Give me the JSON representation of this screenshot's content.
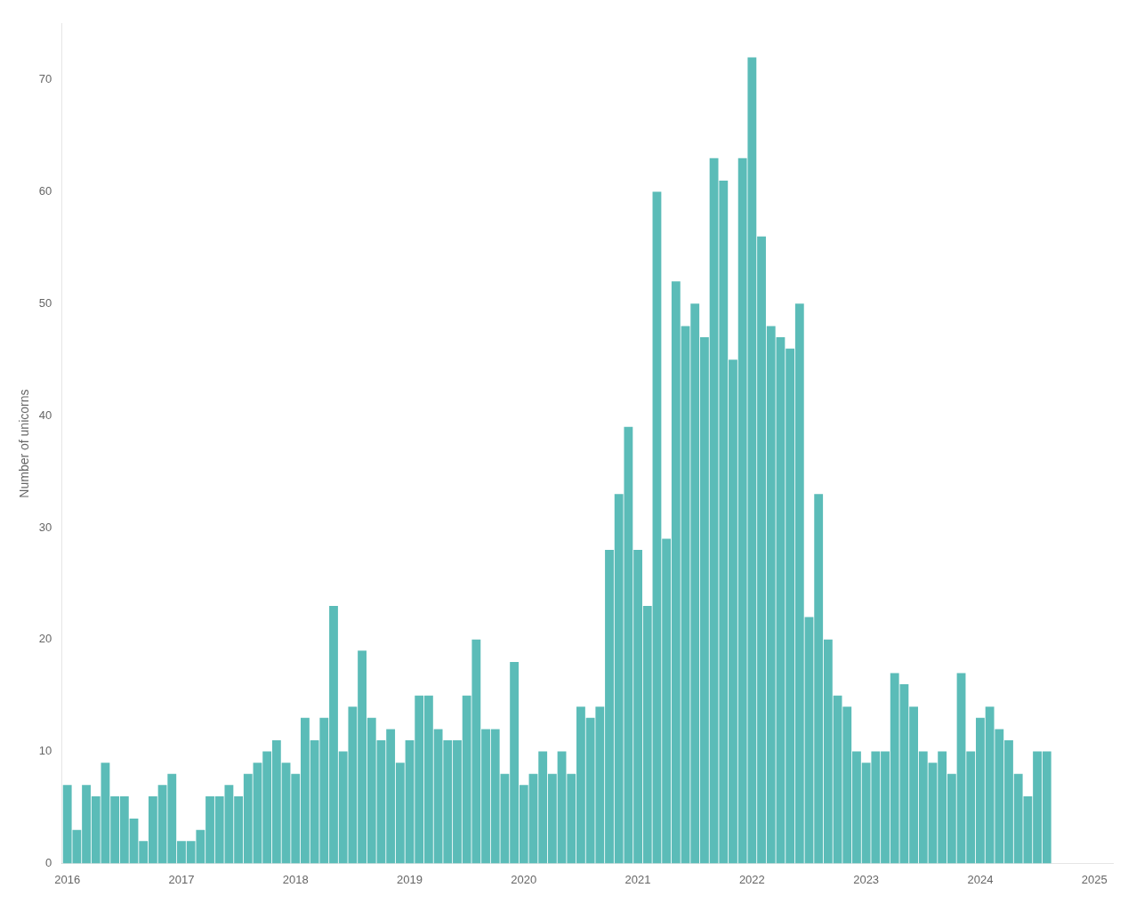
{
  "chart_data": {
    "type": "bar",
    "ylabel": "Number of unicorns",
    "color": "#5bbcb8",
    "grid": false,
    "xlim": [
      2015.95,
      2025.17
    ],
    "xticks": [
      2016,
      2017,
      2018,
      2019,
      2020,
      2021,
      2022,
      2023,
      2024,
      2025
    ],
    "ylim": [
      0,
      75
    ],
    "yticks": [
      0,
      10,
      20,
      30,
      40,
      50,
      60,
      70
    ],
    "x": [
      2016,
      2016.083333,
      2016.166667,
      2016.25,
      2016.333333,
      2016.416667,
      2016.5,
      2016.583333,
      2016.666667,
      2016.75,
      2016.833333,
      2016.916667,
      2017,
      2017.083333,
      2017.166667,
      2017.25,
      2017.333333,
      2017.416667,
      2017.5,
      2017.583333,
      2017.666667,
      2017.75,
      2017.833333,
      2017.916667,
      2018,
      2018.083333,
      2018.166667,
      2018.25,
      2018.333333,
      2018.416667,
      2018.5,
      2018.583333,
      2018.666667,
      2018.75,
      2018.833333,
      2018.916667,
      2019,
      2019.083333,
      2019.166667,
      2019.25,
      2019.333333,
      2019.416667,
      2019.5,
      2019.583333,
      2019.666667,
      2019.75,
      2019.833333,
      2019.916667,
      2020,
      2020.083333,
      2020.166667,
      2020.25,
      2020.333333,
      2020.416667,
      2020.5,
      2020.583333,
      2020.666667,
      2020.75,
      2020.833333,
      2020.916667,
      2021,
      2021.083333,
      2021.166667,
      2021.25,
      2021.333333,
      2021.416667,
      2021.5,
      2021.583333,
      2021.666667,
      2021.75,
      2021.833333,
      2021.916667,
      2022,
      2022.083333,
      2022.166667,
      2022.25,
      2022.333333,
      2022.416667,
      2022.5,
      2022.583333,
      2022.666667,
      2022.75,
      2022.833333,
      2022.916667,
      2023,
      2023.083333,
      2023.166667,
      2023.25,
      2023.333333,
      2023.416667,
      2023.5,
      2023.583333,
      2023.666667,
      2023.75,
      2023.833333,
      2023.916667,
      2024,
      2024.083333,
      2024.166667,
      2024.25,
      2024.333333,
      2024.416667,
      2024.5,
      2024.583333
    ],
    "values": [
      7,
      3,
      7,
      6,
      9,
      6,
      6,
      4,
      2,
      6,
      7,
      8,
      2,
      2,
      3,
      6,
      6,
      7,
      6,
      8,
      9,
      10,
      11,
      9,
      8,
      13,
      11,
      13,
      23,
      10,
      14,
      19,
      13,
      11,
      12,
      9,
      11,
      15,
      15,
      12,
      11,
      11,
      15,
      20,
      12,
      12,
      8,
      18,
      7,
      8,
      10,
      8,
      10,
      8,
      14,
      13,
      14,
      28,
      33,
      39,
      28,
      23,
      60,
      29,
      52,
      48,
      50,
      47,
      63,
      61,
      45,
      63,
      72,
      56,
      48,
      47,
      46,
      50,
      22,
      33,
      20,
      15,
      14,
      10,
      9,
      10,
      10,
      17,
      16,
      14,
      10,
      9,
      10,
      8,
      17,
      10,
      13,
      14,
      12,
      11,
      8,
      6,
      10,
      10
    ]
  }
}
